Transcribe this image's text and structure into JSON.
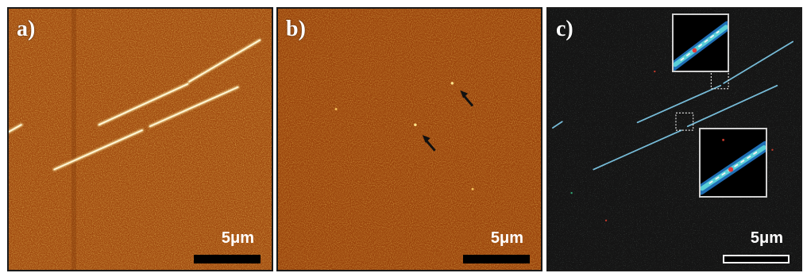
{
  "panels": [
    {
      "id": "a",
      "label": "a)",
      "scale_label": "5μm",
      "style": "afm-height-map-with-filaments",
      "background_color": "#a24a0e"
    },
    {
      "id": "b",
      "label": "b)",
      "scale_label": "5μm",
      "style": "afm-height-map-with-arrows",
      "background_color": "#9c450c"
    },
    {
      "id": "c",
      "label": "c)",
      "scale_label": "5μm",
      "style": "dark-fluorescence-map-with-insets",
      "background_color": "#141414"
    }
  ],
  "colors": {
    "filament_a": "#ffe79a",
    "filament_c": "#6fb8d8",
    "arrow": "#111111",
    "inset_border": "#d0d0d0"
  },
  "icons": [
    "arrow-icon"
  ]
}
